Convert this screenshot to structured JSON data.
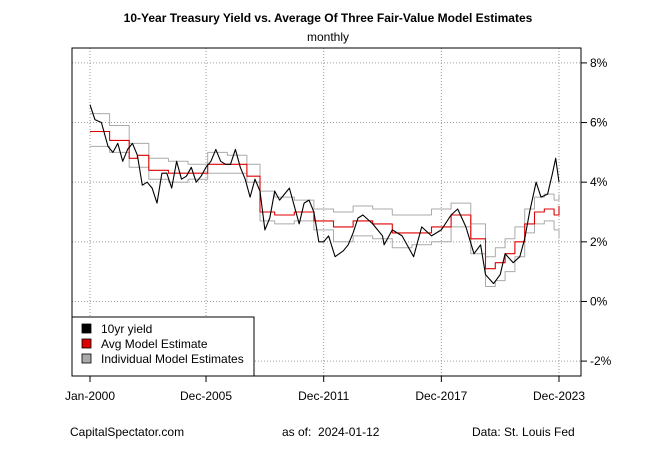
{
  "footer": {
    "left": "CapitalSpectator.com",
    "asof_label": "as of:",
    "asof_date": "2024-01-12",
    "source": "Data: St. Louis Fed"
  },
  "chart_data": {
    "type": "line",
    "title": "10-Year Treasury Yield vs. Average Of Three Fair-Value Model Estimates",
    "subtitle": "monthly",
    "xlabel": "",
    "ylabel": "",
    "x_range": [
      "2000-01",
      "2024-01"
    ],
    "ylim": [
      -2.5,
      8.5
    ],
    "y_axis_side": "right",
    "y_ticks": [
      -2,
      0,
      2,
      4,
      6,
      8
    ],
    "y_tick_labels": [
      "-2%",
      "0%",
      "2%",
      "4%",
      "6%",
      "8%"
    ],
    "x_ticks": [
      "2000-01",
      "2005-12",
      "2011-12",
      "2017-12",
      "2023-12"
    ],
    "x_tick_labels": [
      "Jan-2000",
      "Dec-2005",
      "Dec-2011",
      "Dec-2017",
      "Dec-2023"
    ],
    "grid": true,
    "legend_position": "bottom-left",
    "legend": [
      "10yr yield",
      "Avg Model Estimate",
      "Individual Model Estimates"
    ],
    "colors": {
      "yield": "#000000",
      "avg": "#dd0000",
      "individual": "#aaaaaa"
    },
    "series": [
      {
        "name": "10yr yield",
        "style": "line",
        "x": [
          "2000-01",
          "2000-04",
          "2000-08",
          "2000-12",
          "2001-03",
          "2001-06",
          "2001-09",
          "2001-12",
          "2002-03",
          "2002-06",
          "2002-09",
          "2002-12",
          "2003-03",
          "2003-06",
          "2003-09",
          "2003-12",
          "2004-03",
          "2004-06",
          "2004-09",
          "2004-12",
          "2005-03",
          "2005-06",
          "2005-09",
          "2005-12",
          "2006-03",
          "2006-06",
          "2006-09",
          "2006-12",
          "2007-03",
          "2007-06",
          "2007-09",
          "2007-12",
          "2008-03",
          "2008-06",
          "2008-09",
          "2008-12",
          "2009-03",
          "2009-06",
          "2009-09",
          "2009-12",
          "2010-03",
          "2010-06",
          "2010-09",
          "2010-12",
          "2011-03",
          "2011-06",
          "2011-09",
          "2011-12",
          "2012-03",
          "2012-07",
          "2012-12",
          "2013-03",
          "2013-06",
          "2013-09",
          "2013-12",
          "2014-06",
          "2014-12",
          "2015-01",
          "2015-06",
          "2015-12",
          "2016-07",
          "2016-12",
          "2017-06",
          "2017-12",
          "2018-06",
          "2018-10",
          "2019-03",
          "2019-08",
          "2019-12",
          "2020-03",
          "2020-08",
          "2020-12",
          "2021-03",
          "2021-08",
          "2021-12",
          "2022-03",
          "2022-06",
          "2022-10",
          "2023-01",
          "2023-05",
          "2023-08",
          "2023-10",
          "2023-12"
        ],
        "values": [
          6.6,
          6.1,
          6.0,
          5.2,
          5.0,
          5.3,
          4.7,
          5.1,
          5.3,
          4.9,
          3.9,
          4.0,
          3.8,
          3.3,
          4.3,
          4.3,
          3.8,
          4.7,
          4.1,
          4.2,
          4.5,
          4.0,
          4.2,
          4.5,
          4.7,
          5.1,
          4.7,
          4.6,
          4.6,
          5.1,
          4.5,
          4.1,
          3.5,
          4.1,
          3.7,
          2.4,
          2.8,
          3.7,
          3.4,
          3.6,
          3.8,
          3.2,
          2.6,
          3.3,
          3.4,
          3.0,
          2.0,
          2.0,
          2.2,
          1.5,
          1.7,
          1.9,
          2.3,
          2.8,
          2.9,
          2.6,
          2.2,
          1.9,
          2.4,
          2.2,
          1.5,
          2.5,
          2.2,
          2.4,
          2.9,
          3.1,
          2.5,
          1.6,
          1.9,
          0.9,
          0.6,
          0.9,
          1.6,
          1.3,
          1.5,
          2.1,
          3.0,
          4.0,
          3.5,
          3.6,
          4.3,
          4.8,
          4.0
        ]
      },
      {
        "name": "Avg Model Estimate",
        "style": "step",
        "x": [
          "2000-01",
          "2001-01",
          "2002-01",
          "2002-06",
          "2003-01",
          "2004-01",
          "2005-01",
          "2006-01",
          "2007-01",
          "2008-01",
          "2008-09",
          "2009-06",
          "2010-06",
          "2011-06",
          "2012-06",
          "2013-06",
          "2014-06",
          "2015-06",
          "2016-06",
          "2017-06",
          "2018-06",
          "2019-06",
          "2020-03",
          "2020-09",
          "2021-03",
          "2021-09",
          "2022-03",
          "2022-09",
          "2023-03",
          "2023-09",
          "2023-12"
        ],
        "values": [
          5.7,
          5.4,
          4.8,
          4.9,
          4.4,
          4.3,
          4.3,
          4.6,
          4.6,
          4.2,
          3.0,
          2.9,
          3.0,
          2.7,
          2.5,
          2.7,
          2.6,
          2.3,
          2.3,
          2.5,
          2.9,
          2.1,
          1.1,
          1.3,
          1.6,
          2.0,
          2.6,
          3.0,
          3.1,
          2.9,
          3.2
        ]
      },
      {
        "name": "Individual Model Estimates",
        "style": "step",
        "x": [
          "2000-01",
          "2001-01",
          "2002-01",
          "2003-01",
          "2004-01",
          "2005-01",
          "2006-01",
          "2007-01",
          "2008-01",
          "2008-09",
          "2009-06",
          "2010-06",
          "2011-06",
          "2012-06",
          "2013-06",
          "2014-06",
          "2015-06",
          "2016-06",
          "2017-06",
          "2018-06",
          "2019-06",
          "2020-03",
          "2020-09",
          "2021-03",
          "2021-09",
          "2022-03",
          "2022-09",
          "2023-03",
          "2023-09",
          "2023-12"
        ],
        "values": [
          6.3,
          5.9,
          5.3,
          4.8,
          4.7,
          4.6,
          5.0,
          4.9,
          4.6,
          3.7,
          3.5,
          3.4,
          3.1,
          3.0,
          3.2,
          3.1,
          2.9,
          2.9,
          3.1,
          3.3,
          2.6,
          1.5,
          1.8,
          2.1,
          2.5,
          3.1,
          3.5,
          3.6,
          3.4,
          3.6
        ]
      },
      {
        "name": "Individual Model Estimates",
        "style": "step",
        "x": [
          "2000-01",
          "2001-01",
          "2002-01",
          "2003-01",
          "2004-01",
          "2005-01",
          "2006-01",
          "2007-01",
          "2008-01",
          "2008-09",
          "2009-06",
          "2010-06",
          "2011-06",
          "2012-06",
          "2013-06",
          "2014-06",
          "2015-06",
          "2016-06",
          "2017-06",
          "2018-06",
          "2019-06",
          "2020-03",
          "2020-09",
          "2021-03",
          "2021-09",
          "2022-03",
          "2022-09",
          "2023-03",
          "2023-09",
          "2023-12"
        ],
        "values": [
          5.2,
          5.0,
          4.5,
          4.1,
          4.0,
          4.1,
          4.3,
          4.3,
          4.0,
          2.7,
          2.6,
          2.7,
          2.4,
          2.0,
          2.2,
          2.1,
          1.8,
          1.9,
          2.0,
          2.5,
          1.6,
          0.5,
          0.7,
          1.0,
          1.5,
          2.3,
          2.6,
          2.7,
          2.4,
          2.1
        ]
      }
    ]
  }
}
